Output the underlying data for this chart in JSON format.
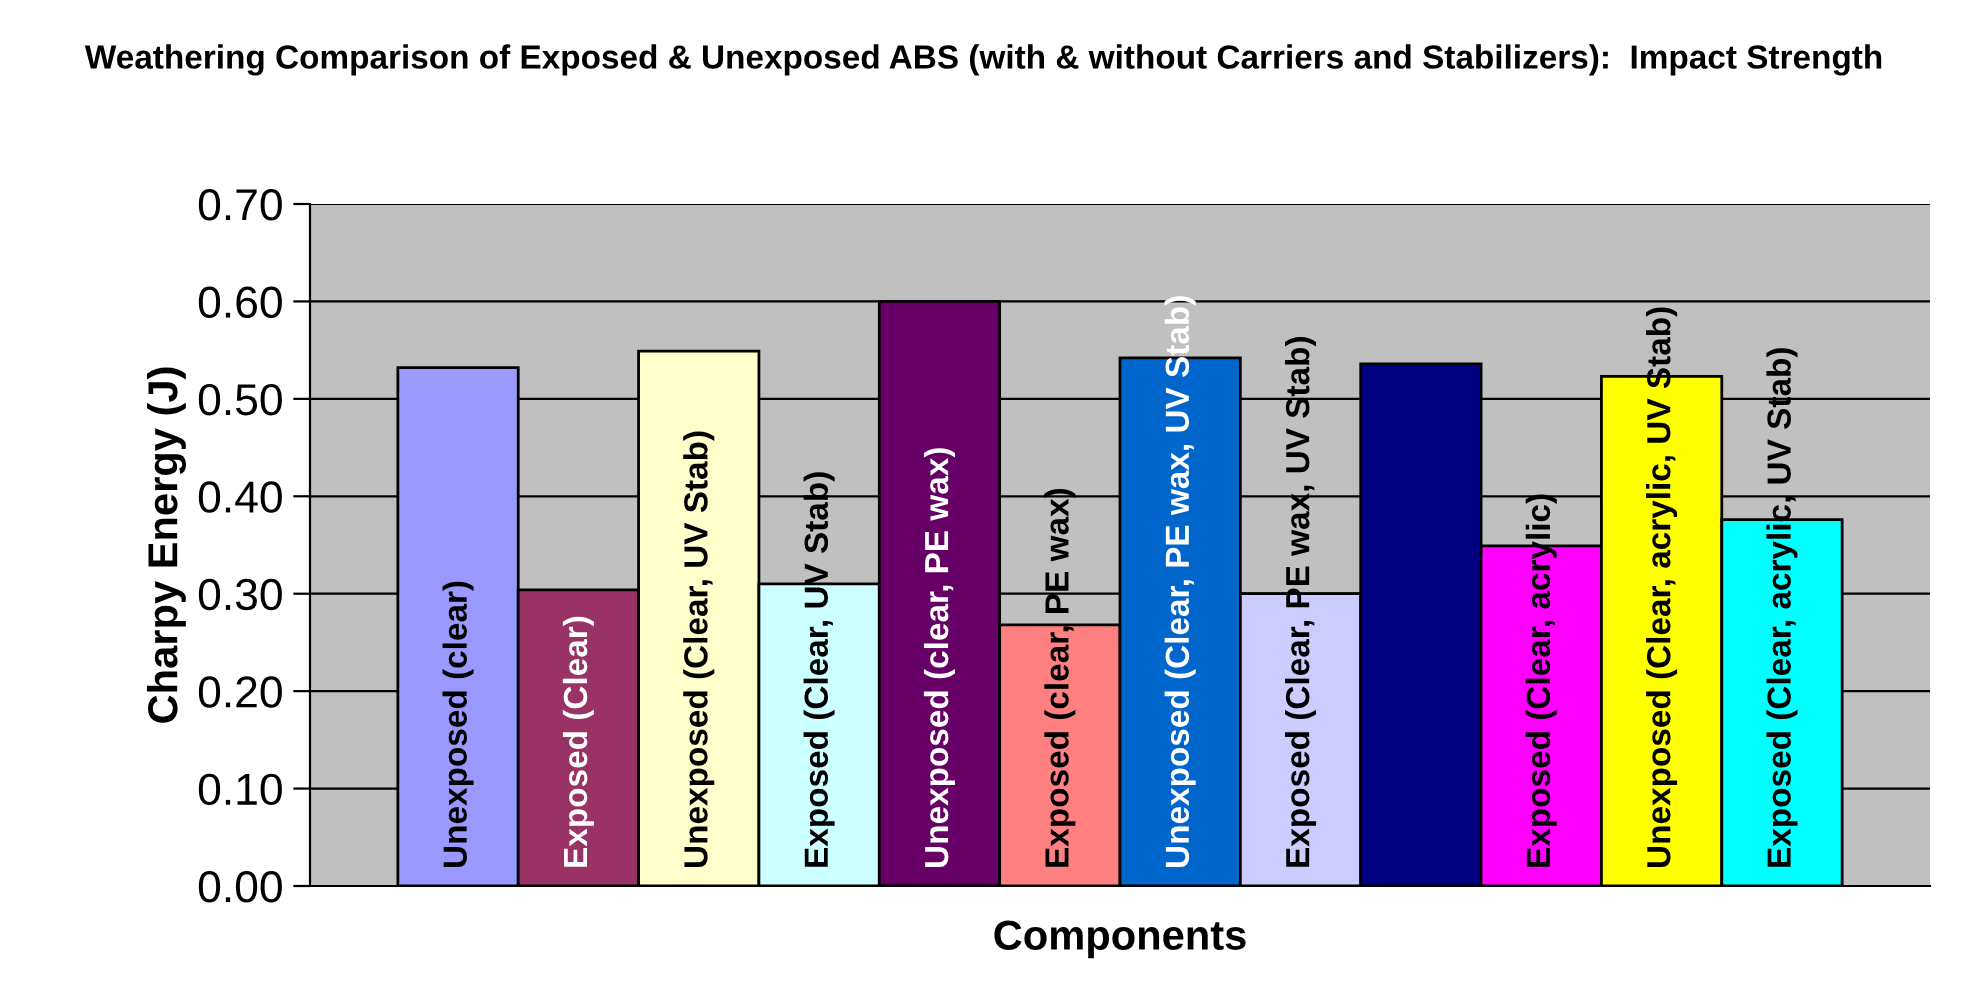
{
  "chart_data": {
    "type": "bar",
    "title": "Weathering Comparison of Exposed & Unexposed ABS (with & without Carriers and Stabilizers):  Impact Strength",
    "xlabel": "Components",
    "ylabel": "Charpy Energy (J)",
    "categories": [
      "Unexposed (clear)",
      "Exposed (Clear)",
      "Unexposed (Clear, UV Stab)",
      "Exposed (Clear, UV Stab)",
      "Unexposed (clear, PE wax)",
      "Exposed (clear, PE wax)",
      "Unexposed (Clear, PE wax, UV Stab)",
      "Exposed (Clear, PE wax, UV Stab)",
      null,
      "Exposed (Clear, acrylic)",
      "Unexposed (Clear, acrylic, UV Stab)",
      "Exposed (Clear, acrylic, UV Stab)"
    ],
    "values": [
      0.532,
      0.304,
      0.549,
      0.31,
      0.6,
      0.268,
      0.542,
      0.3,
      0.536,
      0.349,
      0.523,
      0.376
    ],
    "colors": [
      "#9999ff",
      "#993366",
      "#ffffcc",
      "#ccffff",
      "#660066",
      "#ff8080",
      "#0066cc",
      "#ccccff",
      "#000080",
      "#ff00ff",
      "#ffff00",
      "#00ffff"
    ],
    "ylim": [
      0,
      0.7
    ],
    "yticks": [
      {
        "value": 0,
        "label": "0.00"
      },
      {
        "value": 0.1,
        "label": "0.10"
      },
      {
        "value": 0.2,
        "label": "0.20"
      },
      {
        "value": 0.3,
        "label": "0.30"
      },
      {
        "value": 0.4,
        "label": "0.40"
      },
      {
        "value": 0.5,
        "label": "0.50"
      },
      {
        "value": 0.6,
        "label": "0.60"
      },
      {
        "value": 0.7,
        "label": "0.70"
      }
    ],
    "grid": "y"
  }
}
